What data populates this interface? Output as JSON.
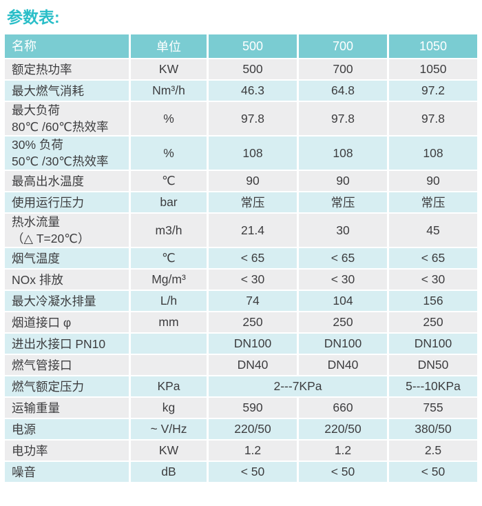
{
  "title": "参数表:",
  "colors": {
    "title": "#2abec8",
    "header_bg": "#7accd2",
    "header_text": "#ffffff",
    "row_gray": "#ededee",
    "row_cyan": "#d7eef2",
    "text": "#3d3d3f"
  },
  "table": {
    "headers": [
      "名称",
      "单位",
      "500",
      "700",
      "1050"
    ],
    "rows": [
      {
        "name": "额定热功率",
        "unit": "KW",
        "values": [
          "500",
          "700",
          "1050"
        ]
      },
      {
        "name": "最大燃气消耗",
        "unit": "Nm³/h",
        "values": [
          "46.3",
          "64.8",
          "97.2"
        ]
      },
      {
        "name": "最大负荷\n80℃ /60℃热效率",
        "unit": "%",
        "values": [
          "97.8",
          "97.8",
          "97.8"
        ]
      },
      {
        "name": "30% 负荷\n50℃ /30℃热效率",
        "unit": "%",
        "values": [
          "108",
          "108",
          "108"
        ]
      },
      {
        "name": "最高出水温度",
        "unit": "℃",
        "values": [
          "90",
          "90",
          "90"
        ]
      },
      {
        "name": "使用运行压力",
        "unit": "bar",
        "values": [
          "常压",
          "常压",
          "常压"
        ]
      },
      {
        "name": "热水流量\n（△ T=20℃）",
        "unit": "m3/h",
        "values": [
          "21.4",
          "30",
          "45"
        ]
      },
      {
        "name": "烟气温度",
        "unit": "℃",
        "values": [
          "< 65",
          "< 65",
          "< 65"
        ]
      },
      {
        "name": "NOx 排放",
        "unit": "Mg/m³",
        "values": [
          "< 30",
          "< 30",
          "< 30"
        ]
      },
      {
        "name": "最大冷凝水排量",
        "unit": "L/h",
        "values": [
          "74",
          "104",
          "156"
        ]
      },
      {
        "name": "烟道接口 φ",
        "unit": "mm",
        "values": [
          "250",
          "250",
          "250"
        ]
      },
      {
        "name": "进出水接口 PN10",
        "unit": "",
        "values": [
          "DN100",
          "DN100",
          "DN100"
        ]
      },
      {
        "name": "燃气管接口",
        "unit": "",
        "values": [
          "DN40",
          "DN40",
          "DN50"
        ]
      },
      {
        "name": "燃气额定压力",
        "unit": "KPa",
        "values": [
          "2---7KPa",
          "5---10KPa"
        ],
        "spans": [
          2,
          1
        ]
      },
      {
        "name": "运输重量",
        "unit": "kg",
        "values": [
          "590",
          "660",
          "755"
        ]
      },
      {
        "name": "电源",
        "unit": "~ V/Hz",
        "values": [
          "220/50",
          "220/50",
          "380/50"
        ]
      },
      {
        "name": "电功率",
        "unit": "KW",
        "values": [
          "1.2",
          "1.2",
          "2.5"
        ]
      },
      {
        "name": "噪音",
        "unit": "dB",
        "values": [
          "< 50",
          "< 50",
          "< 50"
        ]
      }
    ]
  }
}
